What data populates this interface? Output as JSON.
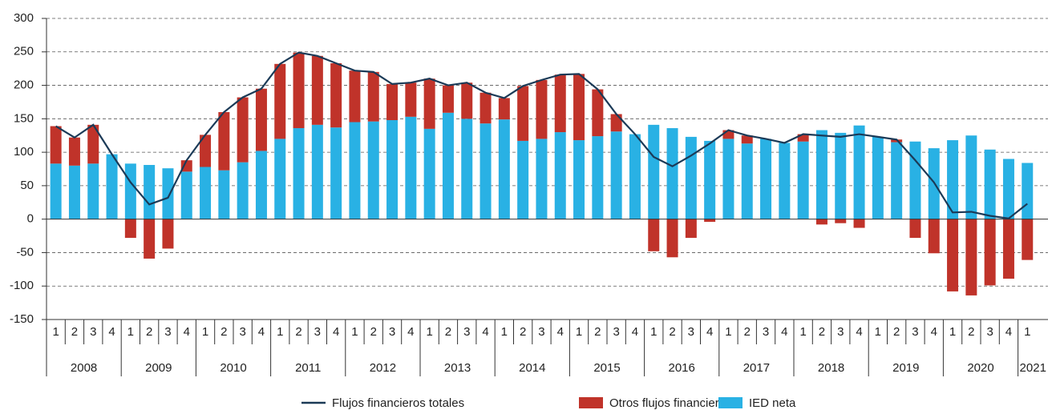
{
  "chart_data": {
    "type": "bar",
    "categories": [
      "1",
      "2",
      "3",
      "4",
      "1",
      "2",
      "3",
      "4",
      "1",
      "2",
      "3",
      "4",
      "1",
      "2",
      "3",
      "4",
      "1",
      "2",
      "3",
      "4",
      "1",
      "2",
      "3",
      "4",
      "1",
      "2",
      "3",
      "4",
      "1",
      "2",
      "3",
      "4",
      "1",
      "2",
      "3",
      "4",
      "1",
      "2",
      "3",
      "4",
      "1",
      "2",
      "3",
      "4",
      "1",
      "2",
      "3",
      "4",
      "1",
      "2",
      "3",
      "4",
      "1"
    ],
    "years": [
      "2008",
      "2009",
      "2010",
      "2011",
      "2012",
      "2013",
      "2014",
      "2015",
      "2016",
      "2017",
      "2018",
      "2019",
      "2020",
      "2021"
    ],
    "series": [
      {
        "name": "Flujos financieros totales",
        "type": "line",
        "color": "#1b3a57",
        "values": [
          139,
          122,
          141,
          97,
          55,
          22,
          32,
          88,
          126,
          160,
          182,
          195,
          232,
          249,
          244,
          233,
          222,
          220,
          202,
          204,
          210,
          200,
          204,
          189,
          181,
          199,
          208,
          216,
          217,
          194,
          157,
          127,
          93,
          79,
          95,
          113,
          133,
          125,
          120,
          114,
          127,
          125,
          123,
          127,
          123,
          119,
          88,
          55,
          10,
          11,
          5,
          1,
          23
        ]
      },
      {
        "name": "Otros flujos financieros",
        "type": "bar",
        "color": "#c0332a",
        "values": [
          56,
          42,
          58,
          0,
          -28,
          -59,
          -44,
          17,
          48,
          87,
          97,
          93,
          112,
          113,
          103,
          96,
          77,
          74,
          54,
          51,
          75,
          41,
          54,
          46,
          32,
          82,
          88,
          86,
          99,
          70,
          26,
          0,
          -48,
          -57,
          -28,
          -4,
          13,
          12,
          0,
          0,
          11,
          -8,
          -6,
          -13,
          0,
          4,
          -28,
          -51,
          -108,
          -114,
          -99,
          -89,
          -61
        ]
      },
      {
        "name": "IED neta",
        "type": "bar",
        "color": "#29b1e4",
        "values": [
          83,
          80,
          83,
          97,
          83,
          81,
          76,
          71,
          78,
          73,
          85,
          102,
          120,
          136,
          141,
          137,
          145,
          146,
          148,
          153,
          135,
          159,
          150,
          143,
          149,
          117,
          120,
          130,
          118,
          124,
          131,
          127,
          141,
          136,
          123,
          117,
          120,
          113,
          120,
          114,
          116,
          133,
          129,
          140,
          123,
          115,
          116,
          106,
          118,
          125,
          104,
          90,
          84
        ]
      }
    ],
    "ylim": [
      -150,
      300
    ],
    "yticks": [
      -150,
      -100,
      -50,
      0,
      50,
      100,
      150,
      200,
      250,
      300
    ],
    "grid": true
  }
}
